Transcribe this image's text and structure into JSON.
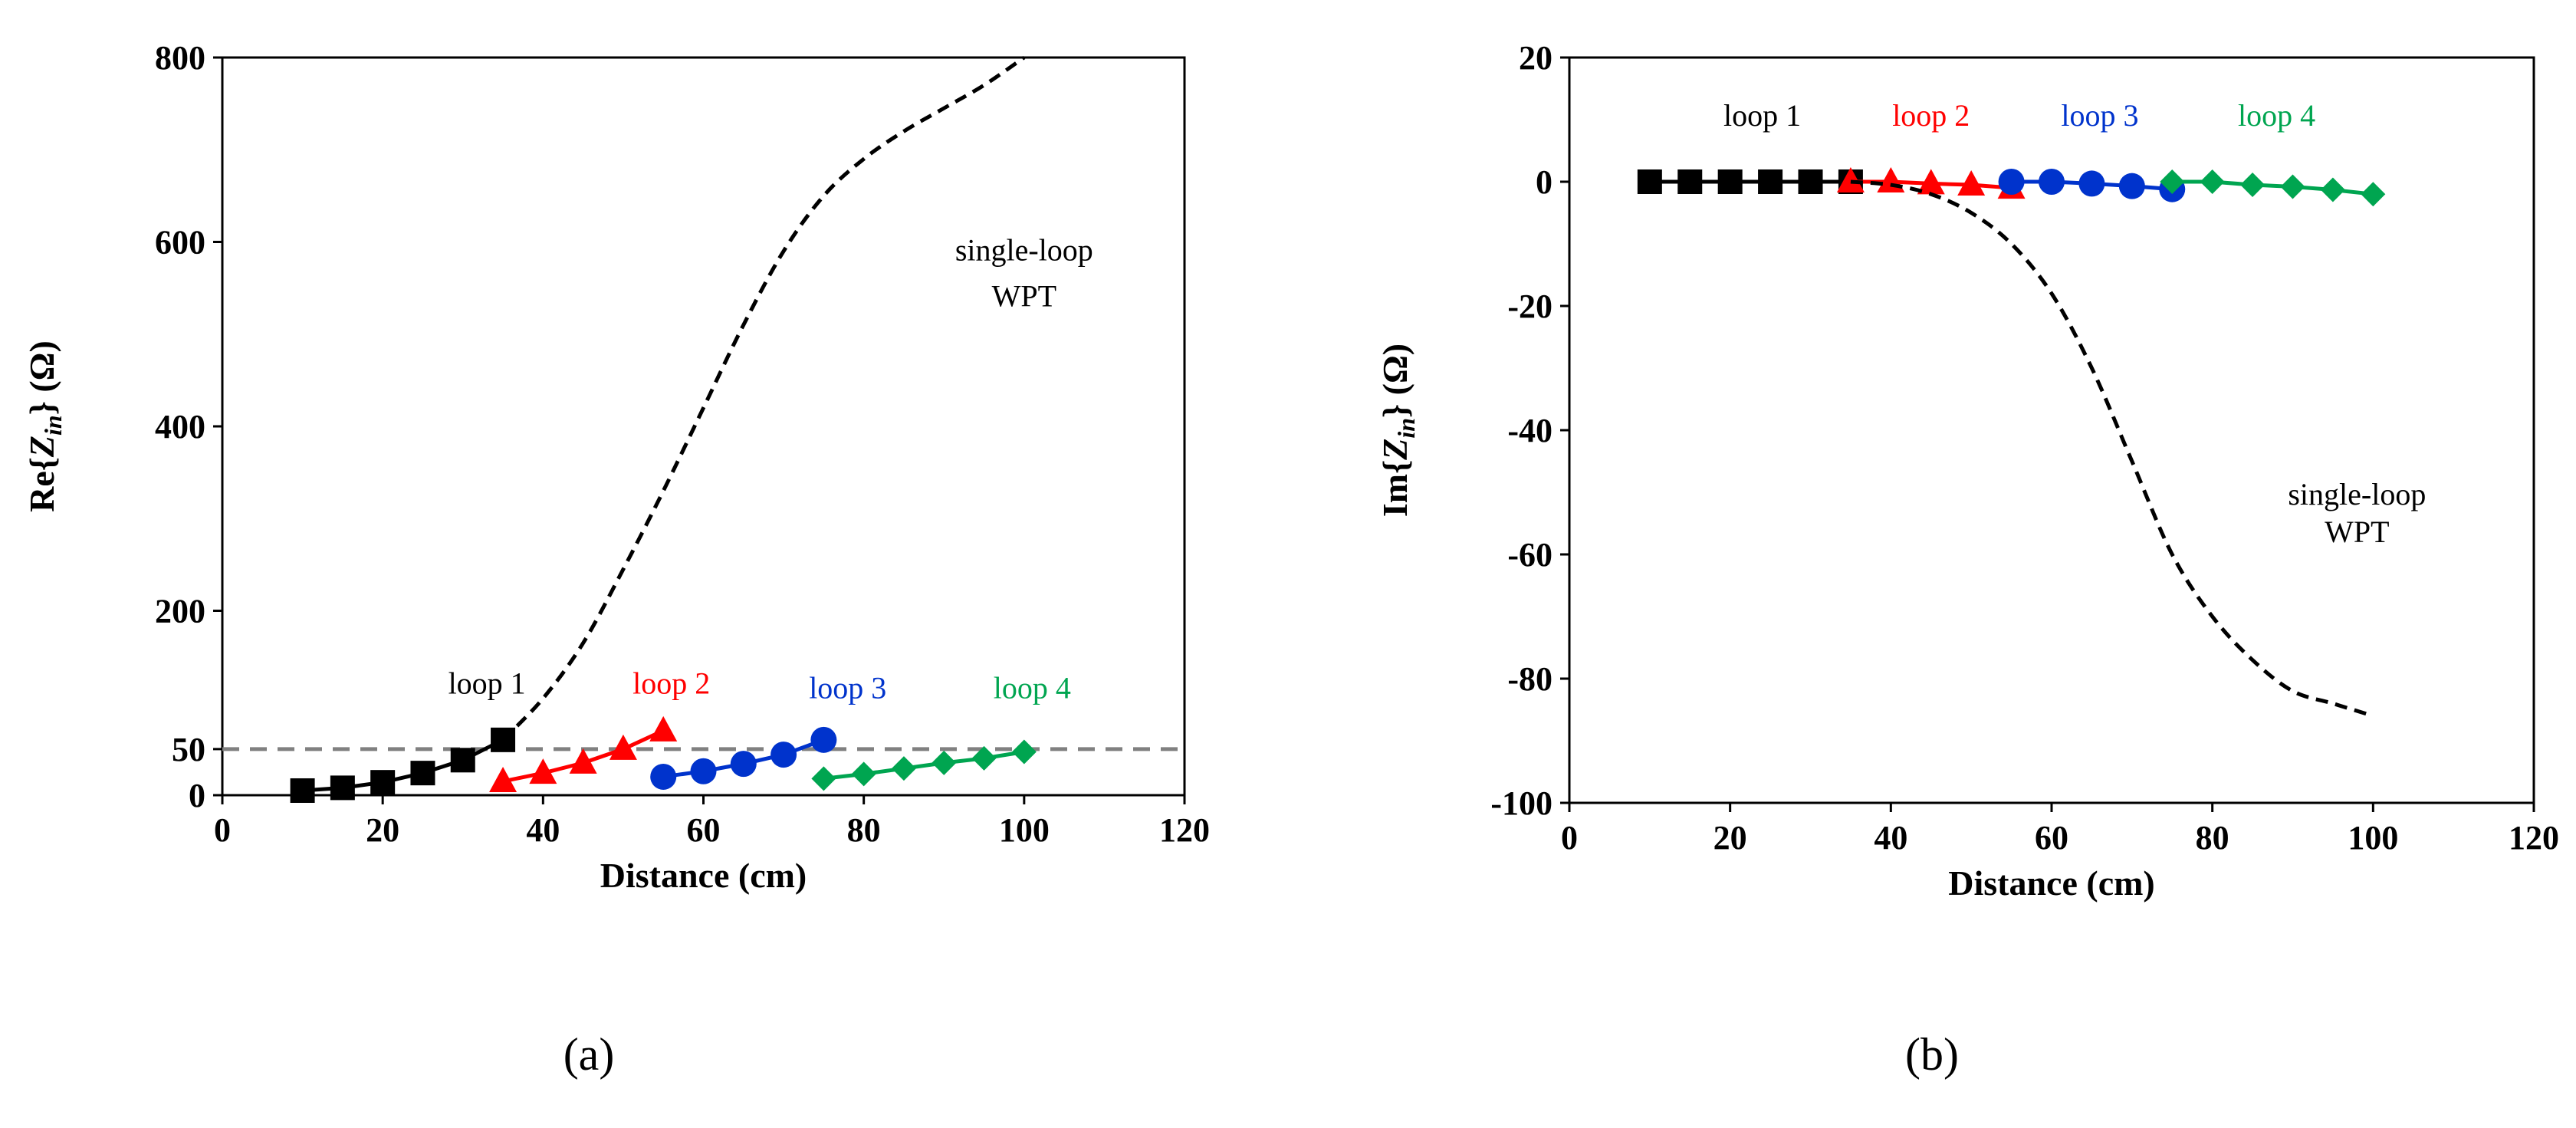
{
  "chart_data": [
    {
      "panel_label": "(a)",
      "type": "line",
      "xlabel": "Distance (cm)",
      "ylabel": {
        "prefix": "Re{",
        "var": "Z",
        "sub": "in",
        "suffix": "} (Ω)"
      },
      "xlim": [
        0,
        120
      ],
      "ylim": [
        0,
        800
      ],
      "xticks": [
        0,
        20,
        40,
        60,
        80,
        100,
        120
      ],
      "yticks": [
        0,
        50,
        200,
        400,
        600,
        800
      ],
      "reference_line": {
        "y": 50,
        "style": "dashed",
        "color": "#808080"
      },
      "series": [
        {
          "name": "loop 1",
          "color": "#000000",
          "marker": "square",
          "x": [
            10,
            15,
            20,
            25,
            30,
            35
          ],
          "y": [
            5,
            8,
            14,
            24,
            38,
            60
          ]
        },
        {
          "name": "loop 2",
          "color": "#ff0000",
          "marker": "triangle",
          "x": [
            35,
            40,
            45,
            50,
            55
          ],
          "y": [
            15,
            24,
            35,
            50,
            70
          ]
        },
        {
          "name": "loop 3",
          "color": "#0033cc",
          "marker": "circle",
          "x": [
            55,
            60,
            65,
            70,
            75
          ],
          "y": [
            20,
            26,
            34,
            44,
            60
          ]
        },
        {
          "name": "loop 4",
          "color": "#00a550",
          "marker": "diamond",
          "x": [
            75,
            80,
            85,
            90,
            95,
            100
          ],
          "y": [
            18,
            23,
            29,
            35,
            40,
            47
          ]
        },
        {
          "name": "single-loop WPT",
          "color": "#000000",
          "marker": "none",
          "style": "dashed",
          "smooth": true,
          "x": [
            35,
            40,
            45,
            50,
            55,
            60,
            65,
            70,
            75,
            80,
            85,
            90,
            95,
            100
          ],
          "y": [
            60,
            105,
            165,
            245,
            330,
            420,
            510,
            590,
            650,
            690,
            720,
            745,
            770,
            800
          ]
        }
      ],
      "annotations": [
        {
          "text": "loop 1",
          "x": 33,
          "y": 110,
          "color": "#000000"
        },
        {
          "text": "loop 2",
          "x": 56,
          "y": 110,
          "color": "#ff0000"
        },
        {
          "text": "loop 3",
          "x": 78,
          "y": 105,
          "color": "#0033cc"
        },
        {
          "text": "loop 4",
          "x": 101,
          "y": 105,
          "color": "#00a550"
        },
        {
          "text": "single-loop",
          "x": 100,
          "y": 580,
          "color": "#000000"
        },
        {
          "text": "WPT",
          "x": 100,
          "y": 530,
          "color": "#000000"
        }
      ]
    },
    {
      "panel_label": "(b)",
      "type": "line",
      "xlabel": "Distance (cm)",
      "ylabel": {
        "prefix": "Im{",
        "var": "Z",
        "sub": "in",
        "suffix": "} (Ω)"
      },
      "xlim": [
        0,
        120
      ],
      "ylim": [
        -100,
        20
      ],
      "xticks": [
        0,
        20,
        40,
        60,
        80,
        100,
        120
      ],
      "yticks": [
        -100,
        -80,
        -60,
        -40,
        -20,
        0,
        20
      ],
      "series": [
        {
          "name": "loop 1",
          "color": "#000000",
          "marker": "square",
          "x": [
            10,
            15,
            20,
            25,
            30,
            35
          ],
          "y": [
            0,
            0,
            0,
            0,
            0,
            0
          ]
        },
        {
          "name": "loop 2",
          "color": "#ff0000",
          "marker": "triangle",
          "x": [
            35,
            40,
            45,
            50,
            55
          ],
          "y": [
            0,
            0,
            -0.3,
            -0.5,
            -1
          ]
        },
        {
          "name": "loop 3",
          "color": "#0033cc",
          "marker": "circle",
          "x": [
            55,
            60,
            65,
            70,
            75
          ],
          "y": [
            0,
            0,
            -0.3,
            -0.7,
            -1.2
          ]
        },
        {
          "name": "loop 4",
          "color": "#00a550",
          "marker": "diamond",
          "x": [
            75,
            80,
            85,
            90,
            95,
            100
          ],
          "y": [
            0,
            0,
            -0.5,
            -0.8,
            -1.3,
            -2
          ]
        },
        {
          "name": "single-loop WPT",
          "color": "#000000",
          "marker": "none",
          "style": "dashed",
          "smooth": true,
          "x": [
            35,
            40,
            45,
            50,
            55,
            60,
            65,
            70,
            75,
            80,
            85,
            90,
            95,
            100
          ],
          "y": [
            0,
            -0.5,
            -2,
            -5,
            -10,
            -18,
            -30,
            -45,
            -60,
            -70,
            -77,
            -82,
            -84,
            -86
          ]
        }
      ],
      "annotations": [
        {
          "text": "loop 1",
          "x": 24,
          "y": 9,
          "color": "#000000"
        },
        {
          "text": "loop 2",
          "x": 45,
          "y": 9,
          "color": "#ff0000"
        },
        {
          "text": "loop 3",
          "x": 66,
          "y": 9,
          "color": "#0033cc"
        },
        {
          "text": "loop 4",
          "x": 88,
          "y": 9,
          "color": "#00a550"
        },
        {
          "text": "single-loop",
          "x": 98,
          "y": -52,
          "color": "#000000"
        },
        {
          "text": "WPT",
          "x": 98,
          "y": -58,
          "color": "#000000"
        }
      ]
    }
  ]
}
